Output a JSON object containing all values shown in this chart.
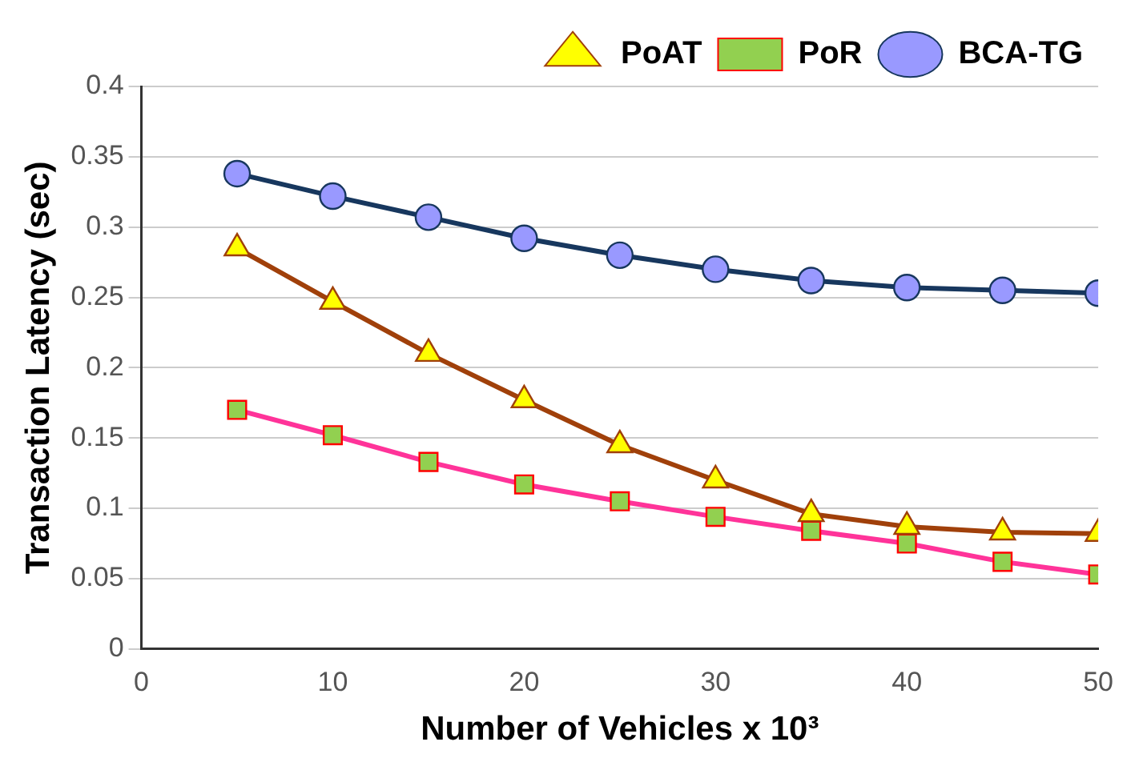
{
  "chart_data": {
    "type": "line",
    "xlabel": "Number of Vehicles x 10³",
    "ylabel": "Transaction Latency (sec)",
    "x": [
      5,
      10,
      15,
      20,
      25,
      30,
      35,
      40,
      45,
      50
    ],
    "series": [
      {
        "name": "PoAT",
        "color": "#a0400a",
        "marker": "triangle",
        "values": [
          0.285,
          0.247,
          0.21,
          0.177,
          0.145,
          0.12,
          0.096,
          0.087,
          0.083,
          0.082
        ]
      },
      {
        "name": "PoR",
        "color": "#ff3399",
        "marker": "square",
        "values": [
          0.17,
          0.152,
          0.133,
          0.117,
          0.105,
          0.094,
          0.084,
          0.075,
          0.062,
          0.053
        ]
      },
      {
        "name": "BCA-TG",
        "color": "#17375e",
        "marker": "circle",
        "values": [
          0.338,
          0.322,
          0.307,
          0.292,
          0.28,
          0.27,
          0.262,
          0.257,
          0.255,
          0.253
        ]
      }
    ],
    "xlim": [
      0,
      50
    ],
    "xticks": [
      0,
      10,
      20,
      30,
      40,
      50
    ],
    "ylim": [
      0,
      0.4
    ],
    "yticks": [
      0,
      0.05,
      0.1,
      0.15,
      0.2,
      0.25,
      0.3,
      0.35,
      0.4
    ],
    "grid": "y",
    "legend": "top right"
  }
}
